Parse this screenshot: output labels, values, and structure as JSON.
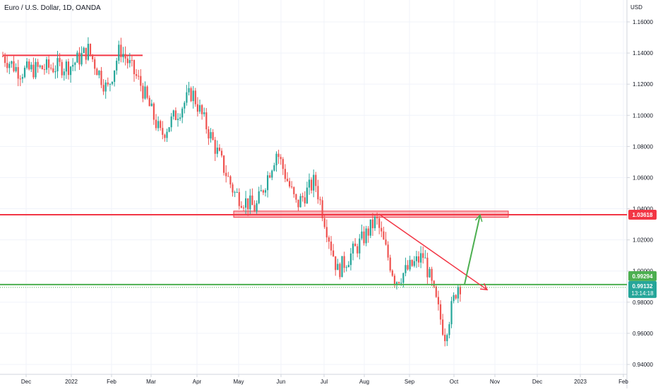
{
  "header": {
    "symbol_title": "Euro / U.S. Dollar, 1D, OANDA",
    "currency": "USD"
  },
  "chart_data": {
    "type": "candlestick",
    "title": "Euro / U.S. Dollar, 1D, OANDA",
    "ylabel": "USD",
    "ylim": [
      0.93,
      1.17
    ],
    "y_ticks": [
      "1.16000",
      "1.14000",
      "1.12000",
      "1.10000",
      "1.08000",
      "1.06000",
      "1.04000",
      "1.02000",
      "1.00000",
      "0.98000",
      "0.96000",
      "0.94000"
    ],
    "x_ticks": [
      "Dec",
      "2022",
      "Feb",
      "Mar",
      "Apr",
      "May",
      "Jun",
      "Jul",
      "Aug",
      "Sep",
      "Oct",
      "Nov",
      "Dec",
      "2023",
      "Feb"
    ],
    "grid": true,
    "colors": {
      "up": "#26a69a",
      "down": "#ef5350",
      "resistance": "#f23645",
      "support": "#4caf50",
      "arrow_down": "#f23645",
      "arrow_up": "#4caf50"
    },
    "price_path": [
      {
        "date": "Nov 29",
        "close": 1.138
      },
      {
        "date": "Dec 10",
        "close": 1.128
      },
      {
        "date": "Dec 20",
        "close": 1.13
      },
      {
        "date": "2022",
        "close": 1.132
      },
      {
        "date": "Jan 14",
        "close": 1.142
      },
      {
        "date": "Jan 28",
        "close": 1.116
      },
      {
        "date": "Feb 10",
        "close": 1.143
      },
      {
        "date": "Feb 24",
        "close": 1.12
      },
      {
        "date": "Mar 7",
        "close": 1.087
      },
      {
        "date": "Mar 31",
        "close": 1.115
      },
      {
        "date": "Apr 28",
        "close": 1.05
      },
      {
        "date": "May 12",
        "close": 1.04
      },
      {
        "date": "May 30",
        "close": 1.077
      },
      {
        "date": "Jun 14",
        "close": 1.042
      },
      {
        "date": "Jun 27",
        "close": 1.058
      },
      {
        "date": "Jul 14",
        "close": 1.0
      },
      {
        "date": "Jul 27",
        "close": 1.015
      },
      {
        "date": "Aug 10",
        "close": 1.033
      },
      {
        "date": "Aug 22",
        "close": 0.994
      },
      {
        "date": "Sep 12",
        "close": 1.01
      },
      {
        "date": "Sep 27",
        "close": 0.959
      },
      {
        "date": "Oct 4",
        "close": 0.991
      }
    ],
    "levels": [
      {
        "name": "resistance",
        "value": 1.03618,
        "label": "1.03618"
      },
      {
        "name": "support",
        "value": 0.99132,
        "label": "0.99132"
      }
    ],
    "price_labels": {
      "last": "0.99294",
      "current": "0.99132",
      "countdown": "13:14:18"
    },
    "zone": {
      "from_date": "May 1",
      "to_date": "Nov 15",
      "low": 1.0345,
      "high": 1.0385
    },
    "trendline": {
      "from": {
        "date": "Aug 12",
        "value": 1.0365
      },
      "to": {
        "date": "Oct 22",
        "value": 0.988
      }
    },
    "projection": {
      "from": {
        "date": "Oct 7",
        "value": 0.9915
      },
      "to": {
        "date": "Oct 18",
        "value": 1.036
      }
    }
  }
}
